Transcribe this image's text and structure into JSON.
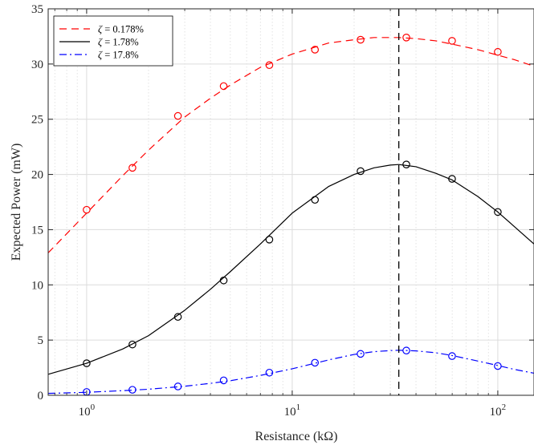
{
  "chart_data": {
    "type": "line",
    "xlabel": "Resistance (kΩ)",
    "ylabel": "Expected Power (mW)",
    "xscale": "log",
    "xlim": [
      0.65,
      150
    ],
    "ylim": [
      0,
      35
    ],
    "x_tick_values": [
      1,
      10,
      100
    ],
    "x_tick_labels": [
      {
        "base": "10",
        "exp": "0"
      },
      {
        "base": "10",
        "exp": "1"
      },
      {
        "base": "10",
        "exp": "2"
      }
    ],
    "y_tick_values": [
      0,
      5,
      10,
      15,
      20,
      25,
      30,
      35
    ],
    "y_tick_labels": [
      "0",
      "5",
      "10",
      "15",
      "20",
      "25",
      "30",
      "35"
    ],
    "grid": true,
    "legend_position": "top-left",
    "vertical_reference_line": {
      "x": 33,
      "style": "dashed",
      "color": "#000000"
    },
    "series": [
      {
        "name": "ζ = 0.178%",
        "legend_symbol": "ζ",
        "legend_rest": " = 0.178%",
        "color": "#ff0000",
        "line_style": "dashed",
        "curve": {
          "x": [
            0.65,
            1,
            1.5,
            2,
            3,
            4,
            5,
            7,
            10,
            15,
            20,
            25,
            30,
            33,
            40,
            50,
            60,
            80,
            100,
            120,
            150
          ],
          "y": [
            12.9,
            16.5,
            19.9,
            22.2,
            25.2,
            26.9,
            28.1,
            29.7,
            30.9,
            31.9,
            32.2,
            32.4,
            32.4,
            32.4,
            32.3,
            32.1,
            31.8,
            31.3,
            30.8,
            30.4,
            29.8
          ]
        },
        "markers": {
          "x": [
            1.0,
            1.67,
            2.78,
            4.64,
            7.74,
            12.9,
            21.5,
            35.9,
            59.9,
            100
          ],
          "y": [
            16.8,
            20.6,
            25.3,
            28.0,
            29.9,
            31.3,
            32.2,
            32.4,
            32.1,
            31.1
          ]
        }
      },
      {
        "name": "ζ = 1.78%",
        "legend_symbol": "ζ",
        "legend_rest": " = 1.78%",
        "color": "#000000",
        "line_style": "solid",
        "curve": {
          "x": [
            0.65,
            1,
            1.5,
            2,
            3,
            4,
            5,
            7,
            10,
            15,
            20,
            25,
            30,
            33,
            40,
            50,
            60,
            80,
            100,
            120,
            150
          ],
          "y": [
            1.9,
            2.9,
            4.2,
            5.4,
            7.7,
            9.6,
            11.2,
            13.7,
            16.5,
            18.9,
            20.0,
            20.6,
            20.85,
            20.9,
            20.7,
            20.1,
            19.5,
            18.0,
            16.6,
            15.3,
            13.7
          ]
        },
        "markers": {
          "x": [
            1.0,
            1.67,
            2.78,
            4.64,
            7.74,
            12.9,
            21.5,
            35.9,
            59.9,
            100
          ],
          "y": [
            2.9,
            4.6,
            7.1,
            10.4,
            14.1,
            17.7,
            20.3,
            20.9,
            19.6,
            16.6
          ]
        }
      },
      {
        "name": "ζ = 17.8%",
        "legend_symbol": "ζ",
        "legend_rest": " = 17.8%",
        "color": "#0000ff",
        "line_style": "dashdot",
        "curve": {
          "x": [
            0.65,
            1,
            1.5,
            2,
            3,
            4,
            5,
            7,
            10,
            15,
            20,
            25,
            30,
            33,
            40,
            50,
            60,
            80,
            100,
            120,
            150
          ],
          "y": [
            0.17,
            0.27,
            0.42,
            0.55,
            0.82,
            1.08,
            1.32,
            1.8,
            2.4,
            3.2,
            3.7,
            3.95,
            4.05,
            4.08,
            4.02,
            3.85,
            3.6,
            3.1,
            2.7,
            2.35,
            2.0
          ]
        },
        "markers": {
          "x": [
            1.0,
            1.67,
            2.78,
            4.64,
            7.74,
            12.9,
            21.5,
            35.9,
            59.9,
            100
          ],
          "y": [
            0.3,
            0.5,
            0.8,
            1.35,
            2.05,
            2.95,
            3.75,
            4.05,
            3.55,
            2.65
          ]
        }
      }
    ]
  }
}
